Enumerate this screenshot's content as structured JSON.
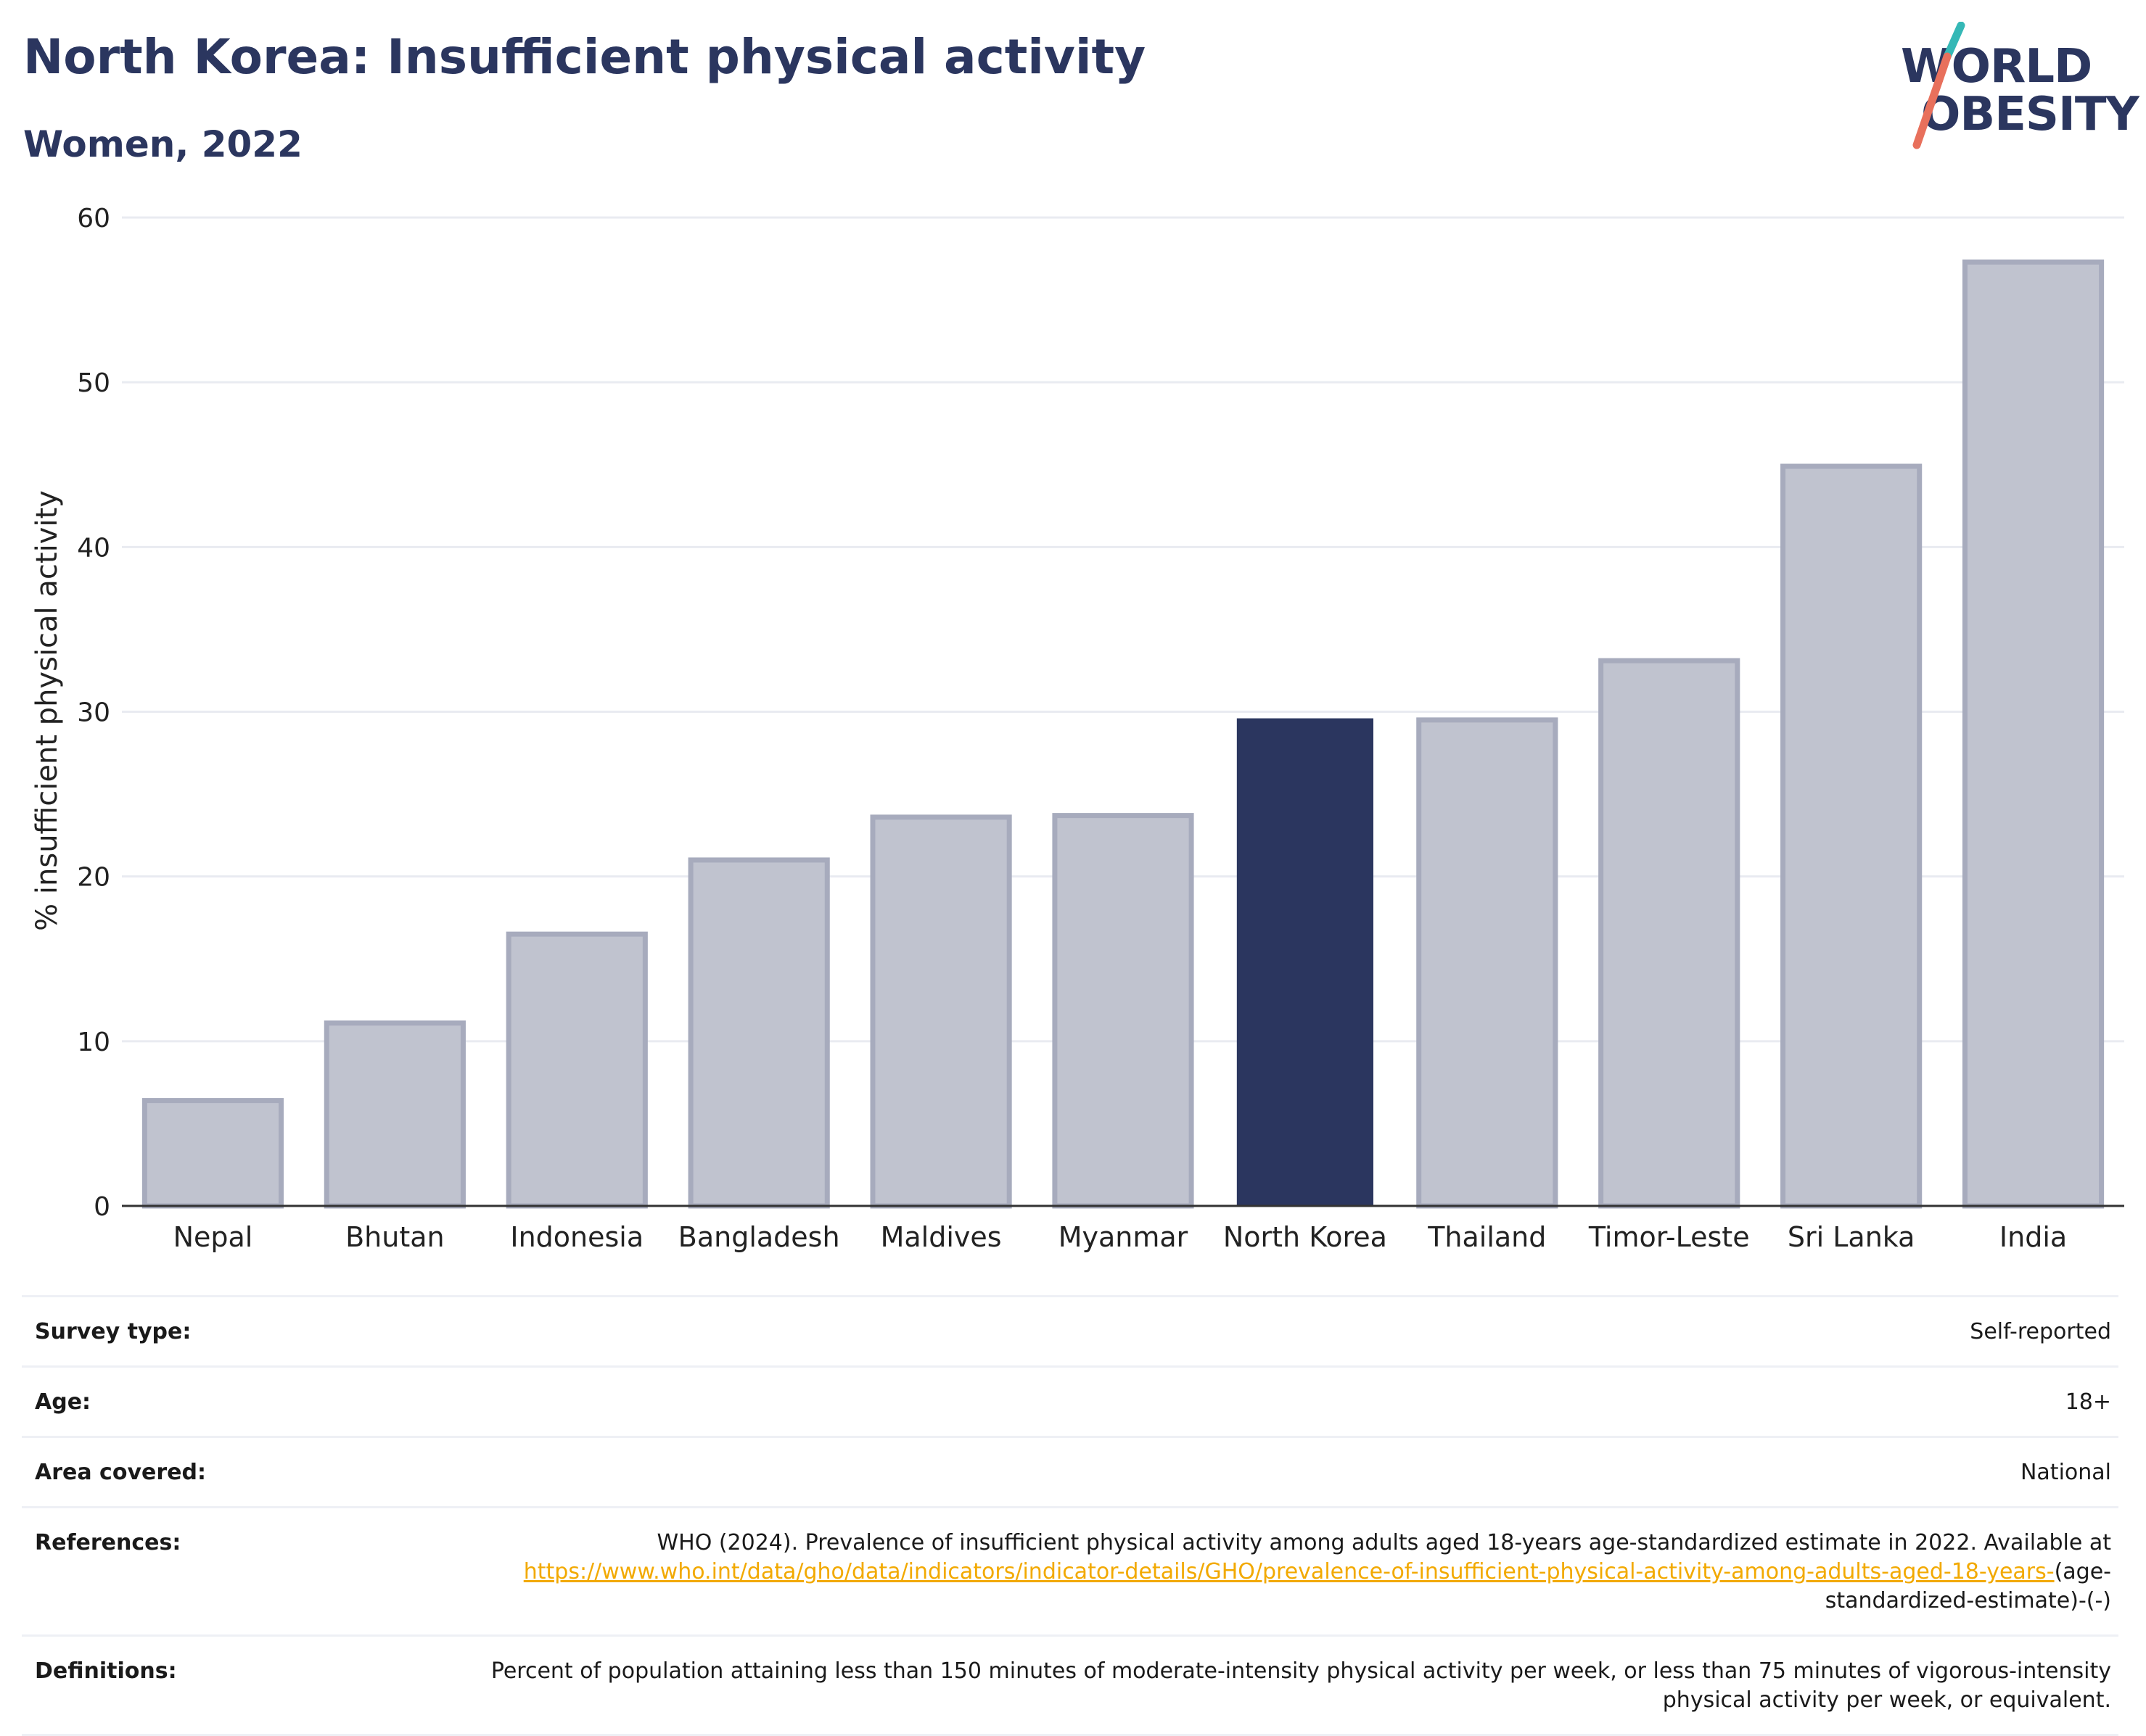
{
  "header": {
    "title": "North Korea: Insufficient physical activity",
    "subtitle": "Women, 2022"
  },
  "logo": {
    "line1": "WORLD",
    "line2": "OBESITY"
  },
  "chart_data": {
    "type": "bar",
    "title": "North Korea: Insufficient physical activity",
    "subtitle": "Women, 2022",
    "xlabel": "",
    "ylabel": "% insufficient physical activity",
    "ylim": [
      0,
      60
    ],
    "yticks": [
      0,
      10,
      20,
      30,
      40,
      50,
      60
    ],
    "grid": true,
    "categories": [
      "Nepal",
      "Bhutan",
      "Indonesia",
      "Bangladesh",
      "Maldives",
      "Myanmar",
      "North Korea",
      "Thailand",
      "Timor-Leste",
      "Sri Lanka",
      "India"
    ],
    "values": [
      6.4,
      11.1,
      16.5,
      21.0,
      23.6,
      23.7,
      29.6,
      29.5,
      33.1,
      44.9,
      57.3
    ],
    "highlight": "North Korea",
    "colors": {
      "highlight": "#2b365f",
      "bar": "#c0c3cf",
      "bar_edge": "#a7abbd"
    }
  },
  "info": {
    "survey_label": "Survey type:",
    "survey_value": "Self-reported",
    "age_label": "Age:",
    "age_value": "18+",
    "area_label": "Area covered:",
    "area_value": "National",
    "references_label": "References:",
    "references_text": "WHO (2024). Prevalence of insufficient physical activity among adults aged 18-years age-standardized estimate in 2022. Available at",
    "references_link": "https://www.who.int/data/gho/data/indicators/indicator-details/GHO/prevalence-of-insufficient-physical-activity-among-adults-aged-18-years-",
    "references_suffix": "(age-standardized-estimate)-(-)",
    "definitions_label": "Definitions:",
    "definitions_text": "Percent of population attaining less than 150 minutes of moderate-intensity physical activity per week, or less than 75 minutes of vigorous-intensity physical activity per week, or equivalent."
  }
}
